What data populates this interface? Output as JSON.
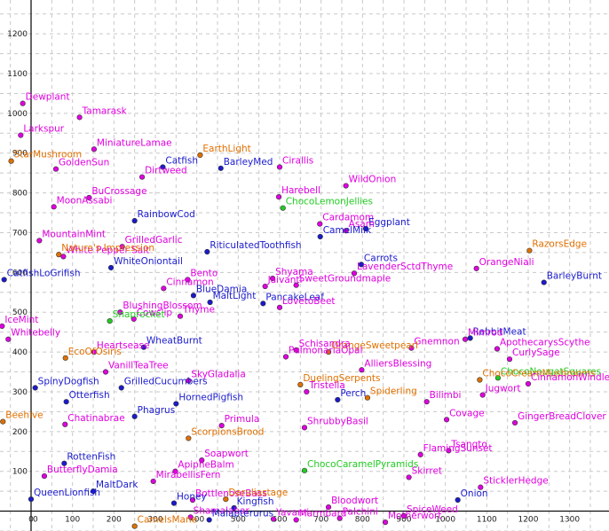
{
  "palette": {
    "magenta": "#e000e0",
    "blue": "#1a1acc",
    "orange": "#e07000",
    "green": "#22cc22",
    "grid": "#c8c8c8"
  },
  "chart_data": {
    "type": "scatter",
    "xlim": [
      -75,
      1395
    ],
    "ylim": [
      -50,
      1285
    ],
    "xticks": [
      0,
      100,
      200,
      300,
      400,
      500,
      600,
      700,
      800,
      900,
      1000,
      1100,
      1200,
      1300
    ],
    "yticks": [
      100,
      200,
      300,
      400,
      500,
      600,
      700,
      800,
      900,
      1000,
      1100,
      1200
    ],
    "grid": true,
    "points": [
      {
        "label": "Dewplant",
        "x": -20,
        "y": 1025,
        "color": "magenta"
      },
      {
        "label": "Tamarask",
        "x": 117,
        "y": 990,
        "color": "magenta"
      },
      {
        "label": "Larkspur",
        "x": -25,
        "y": 945,
        "color": "magenta"
      },
      {
        "label": "MiniatureLamae",
        "x": 152,
        "y": 910,
        "color": "magenta"
      },
      {
        "label": "StarMushroom",
        "x": -48,
        "y": 880,
        "color": "orange"
      },
      {
        "label": "EarthLight",
        "x": 408,
        "y": 895,
        "color": "orange"
      },
      {
        "label": "GoldenSun",
        "x": 60,
        "y": 860,
        "color": "magenta"
      },
      {
        "label": "BarleyMed",
        "x": 458,
        "y": 862,
        "color": "blue"
      },
      {
        "label": "Catfish",
        "x": 318,
        "y": 865,
        "color": "blue"
      },
      {
        "label": "Dirtweed",
        "x": 268,
        "y": 840,
        "color": "magenta"
      },
      {
        "label": "Cirallis",
        "x": 600,
        "y": 865,
        "color": "magenta"
      },
      {
        "label": "WildOnion",
        "x": 760,
        "y": 818,
        "color": "magenta"
      },
      {
        "label": "BuCrossage",
        "x": 140,
        "y": 788,
        "color": "magenta"
      },
      {
        "label": "Harebell",
        "x": 598,
        "y": 790,
        "color": "magenta"
      },
      {
        "label": "MoonAssabi",
        "x": 55,
        "y": 765,
        "color": "magenta"
      },
      {
        "label": "ChocoLemonJellies",
        "x": 608,
        "y": 762,
        "color": "green"
      },
      {
        "label": "RainbowCod",
        "x": 250,
        "y": 730,
        "color": "blue"
      },
      {
        "label": "Cardamom",
        "x": 697,
        "y": 722,
        "color": "magenta"
      },
      {
        "label": "Eggplant",
        "x": 808,
        "y": 710,
        "color": "blue"
      },
      {
        "label": "Asam",
        "x": 760,
        "y": 705,
        "color": "magenta"
      },
      {
        "label": "CamelMilk",
        "x": 698,
        "y": 690,
        "color": "blue"
      },
      {
        "label": "MountainMint",
        "x": 20,
        "y": 680,
        "color": "magenta"
      },
      {
        "label": "GrilledGarlic",
        "x": 220,
        "y": 665,
        "color": "magenta"
      },
      {
        "label": "RiticulatedToothfish",
        "x": 425,
        "y": 652,
        "color": "blue"
      },
      {
        "label": "RazorsEdge",
        "x": 1203,
        "y": 655,
        "color": "orange"
      },
      {
        "label": "White Pepper Salt",
        "x": 78,
        "y": 640,
        "color": "magenta"
      },
      {
        "label": "Nature's Impression",
        "x": 67,
        "y": 645,
        "color": "orange"
      },
      {
        "label": "WhiteOniontail",
        "x": 193,
        "y": 612,
        "color": "blue"
      },
      {
        "label": "Carrots",
        "x": 797,
        "y": 620,
        "color": "blue"
      },
      {
        "label": "OrangeNiali",
        "x": 1075,
        "y": 610,
        "color": "magenta"
      },
      {
        "label": "LavenderSctdThyme",
        "x": 780,
        "y": 598,
        "color": "magenta"
      },
      {
        "label": "Shyama",
        "x": 583,
        "y": 585,
        "color": "magenta"
      },
      {
        "label": "CatfishLoGrifish",
        "x": -65,
        "y": 582,
        "color": "blue"
      },
      {
        "label": "Bento",
        "x": 378,
        "y": 582,
        "color": "magenta"
      },
      {
        "label": "Jaivanti",
        "x": 565,
        "y": 565,
        "color": "magenta"
      },
      {
        "label": "SweetGroundmaple",
        "x": 640,
        "y": 568,
        "color": "magenta"
      },
      {
        "label": "BarleyBurnt",
        "x": 1238,
        "y": 575,
        "color": "blue"
      },
      {
        "label": "Cinnamon",
        "x": 320,
        "y": 560,
        "color": "magenta"
      },
      {
        "label": "BlueDamia",
        "x": 392,
        "y": 542,
        "color": "blue"
      },
      {
        "label": "MaltLight",
        "x": 432,
        "y": 525,
        "color": "blue"
      },
      {
        "label": "PancakeLeaf",
        "x": 560,
        "y": 522,
        "color": "blue"
      },
      {
        "label": "LovetoBeet",
        "x": 600,
        "y": 512,
        "color": "magenta"
      },
      {
        "label": "BlushingBlossom",
        "x": 215,
        "y": 500,
        "color": "magenta"
      },
      {
        "label": "Thyme",
        "x": 360,
        "y": 490,
        "color": "magenta"
      },
      {
        "label": "Cowslip",
        "x": 248,
        "y": 483,
        "color": "magenta"
      },
      {
        "label": "Snaprocket",
        "x": 190,
        "y": 478,
        "color": "green"
      },
      {
        "label": "IceMint",
        "x": -70,
        "y": 465,
        "color": "magenta"
      },
      {
        "label": "Whitebelly",
        "x": -55,
        "y": 432,
        "color": "magenta"
      },
      {
        "label": "RabbitMeat",
        "x": 1060,
        "y": 435,
        "color": "blue"
      },
      {
        "label": "Mimrod",
        "x": 1048,
        "y": 432,
        "color": "magenta"
      },
      {
        "label": "Gnemnon",
        "x": 918,
        "y": 410,
        "color": "magenta"
      },
      {
        "label": "OrangeSweetpearl",
        "x": 718,
        "y": 400,
        "color": "orange"
      },
      {
        "label": "Schisandra",
        "x": 640,
        "y": 405,
        "color": "magenta"
      },
      {
        "label": "ApothecarysScythe",
        "x": 1125,
        "y": 408,
        "color": "magenta"
      },
      {
        "label": "WheatBurnt",
        "x": 272,
        "y": 412,
        "color": "blue"
      },
      {
        "label": "Heartsease",
        "x": 152,
        "y": 400,
        "color": "magenta"
      },
      {
        "label": "PulmonariaOpal",
        "x": 615,
        "y": 388,
        "color": "magenta"
      },
      {
        "label": "CurlySage",
        "x": 1155,
        "y": 382,
        "color": "magenta"
      },
      {
        "label": "EcoOfOsiris",
        "x": 83,
        "y": 385,
        "color": "orange"
      },
      {
        "label": "VanillTeaTree",
        "x": 180,
        "y": 350,
        "color": "magenta"
      },
      {
        "label": "AlliersBlessing",
        "x": 798,
        "y": 355,
        "color": "magenta"
      },
      {
        "label": "ChocoNougatSquares",
        "x": 1127,
        "y": 335,
        "color": "green"
      },
      {
        "label": "ChocoCreamMushrooms",
        "x": 1083,
        "y": 330,
        "color": "orange"
      },
      {
        "label": "CinnamonWindleaf",
        "x": 1200,
        "y": 320,
        "color": "magenta"
      },
      {
        "label": "SkyGladalia",
        "x": 380,
        "y": 328,
        "color": "magenta"
      },
      {
        "label": "GrilledCucumbers",
        "x": 218,
        "y": 310,
        "color": "blue"
      },
      {
        "label": "SpinyDogfish",
        "x": 10,
        "y": 310,
        "color": "blue"
      },
      {
        "label": "DuelingSerpents",
        "x": 650,
        "y": 318,
        "color": "orange"
      },
      {
        "label": "Tristella",
        "x": 665,
        "y": 300,
        "color": "magenta"
      },
      {
        "label": "Jugwort",
        "x": 1090,
        "y": 292,
        "color": "magenta"
      },
      {
        "label": "Otterfish",
        "x": 85,
        "y": 275,
        "color": "blue"
      },
      {
        "label": "HornedPigfish",
        "x": 350,
        "y": 270,
        "color": "blue"
      },
      {
        "label": "Perch",
        "x": 740,
        "y": 280,
        "color": "blue"
      },
      {
        "label": "Spiderling",
        "x": 812,
        "y": 285,
        "color": "orange"
      },
      {
        "label": "Bilimbi",
        "x": 955,
        "y": 275,
        "color": "magenta"
      },
      {
        "label": "Beehive",
        "x": -68,
        "y": 225,
        "color": "orange"
      },
      {
        "label": "Phagrus",
        "x": 250,
        "y": 238,
        "color": "blue"
      },
      {
        "label": "Covage",
        "x": 1003,
        "y": 230,
        "color": "magenta"
      },
      {
        "label": "GingerBreadClover",
        "x": 1168,
        "y": 222,
        "color": "magenta"
      },
      {
        "label": "Chatinabrae",
        "x": 82,
        "y": 218,
        "color": "magenta"
      },
      {
        "label": "Primula",
        "x": 460,
        "y": 215,
        "color": "magenta"
      },
      {
        "label": "ShrubbyBasil",
        "x": 660,
        "y": 210,
        "color": "magenta"
      },
      {
        "label": "ScorpionsBrood",
        "x": 380,
        "y": 183,
        "color": "orange"
      },
      {
        "label": "Tsangto",
        "x": 1008,
        "y": 152,
        "color": "magenta"
      },
      {
        "label": "FlamingSunset",
        "x": 940,
        "y": 142,
        "color": "magenta"
      },
      {
        "label": "RottenFish",
        "x": 80,
        "y": 120,
        "color": "blue"
      },
      {
        "label": "Soapwort",
        "x": 412,
        "y": 128,
        "color": "magenta"
      },
      {
        "label": "ChocoCaramelPyramids",
        "x": 660,
        "y": 102,
        "color": "green"
      },
      {
        "label": "Skirret",
        "x": 912,
        "y": 85,
        "color": "magenta"
      },
      {
        "label": "ButterflyDamia",
        "x": 32,
        "y": 88,
        "color": "magenta"
      },
      {
        "label": "ApipheBalm",
        "x": 348,
        "y": 100,
        "color": "magenta"
      },
      {
        "label": "MirabellisFern",
        "x": 295,
        "y": 75,
        "color": "magenta"
      },
      {
        "label": "SticklerHedge",
        "x": 1085,
        "y": 60,
        "color": "magenta"
      },
      {
        "label": "MaltDark",
        "x": 150,
        "y": 50,
        "color": "blue"
      },
      {
        "label": "QueenLionfish",
        "x": 0,
        "y": 30,
        "color": "blue"
      },
      {
        "label": "Onion",
        "x": 1030,
        "y": 28,
        "color": "blue"
      },
      {
        "label": "BottlenoseBass",
        "x": 390,
        "y": 28,
        "color": "magenta"
      },
      {
        "label": "Daruliastage",
        "x": 470,
        "y": 30,
        "color": "orange"
      },
      {
        "label": "Honey",
        "x": 345,
        "y": 20,
        "color": "blue"
      },
      {
        "label": "Kingfish",
        "x": 490,
        "y": 8,
        "color": "blue"
      },
      {
        "label": "Bloodwort",
        "x": 718,
        "y": 10,
        "color": "magenta"
      },
      {
        "label": "Shamalabar",
        "x": 385,
        "y": -15,
        "color": "magenta"
      },
      {
        "label": "Malapterurus",
        "x": 430,
        "y": -22,
        "color": "blue"
      },
      {
        "label": "Yavami",
        "x": 585,
        "y": -20,
        "color": "magenta"
      },
      {
        "label": "Marmbard",
        "x": 640,
        "y": -22,
        "color": "magenta"
      },
      {
        "label": "Palchini",
        "x": 745,
        "y": -18,
        "color": "magenta"
      },
      {
        "label": "Motherwort",
        "x": 855,
        "y": -28,
        "color": "magenta"
      },
      {
        "label": "SpiceWeed",
        "x": 900,
        "y": -12,
        "color": "magenta"
      },
      {
        "label": "CamelsMane",
        "x": 250,
        "y": -38,
        "color": "orange"
      }
    ]
  }
}
